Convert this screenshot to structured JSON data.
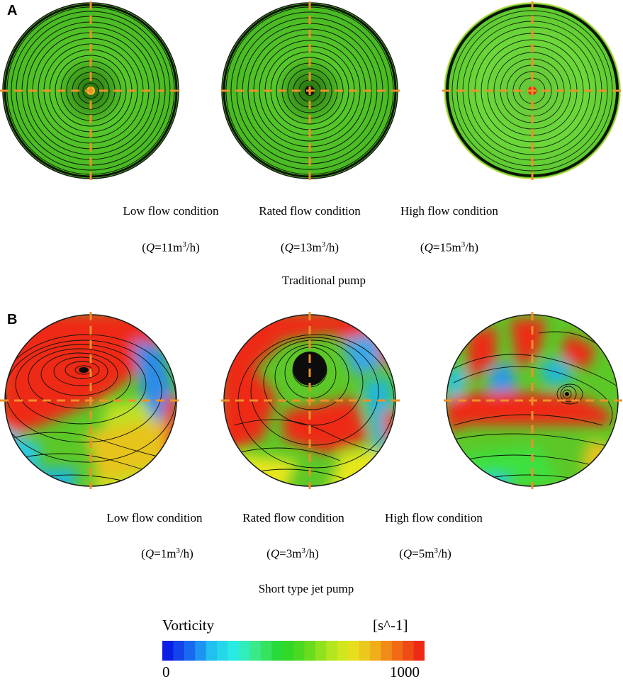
{
  "panels": [
    {
      "letter": "A",
      "title": "Traditional pump",
      "conditions": [
        {
          "label": "Low flow condition",
          "q_prefix": "(",
          "q_var": "Q",
          "q_value": "=11m",
          "q_exp": "3",
          "q_suffix": "/h)"
        },
        {
          "label": "Rated flow condition",
          "q_prefix": "(",
          "q_var": "Q",
          "q_value": "=13m",
          "q_exp": "3",
          "q_suffix": "/h)"
        },
        {
          "label": "High flow condition",
          "q_prefix": "(",
          "q_var": "Q",
          "q_value": "=15m",
          "q_exp": "3",
          "q_suffix": "/h)"
        }
      ]
    },
    {
      "letter": "B",
      "title": "Short type jet pump",
      "conditions": [
        {
          "label": "Low flow condition",
          "q_prefix": "(",
          "q_var": "Q",
          "q_value": "=1m",
          "q_exp": "3",
          "q_suffix": "/h)"
        },
        {
          "label": "Rated flow condition",
          "q_prefix": "(",
          "q_var": "Q",
          "q_value": "=3m",
          "q_exp": "3",
          "q_suffix": "/h)"
        },
        {
          "label": "High flow condition",
          "q_prefix": "(",
          "q_var": "Q",
          "q_value": "=5m",
          "q_exp": "3",
          "q_suffix": "/h)"
        }
      ]
    }
  ],
  "colorbar": {
    "title": "Vorticity",
    "unit": "[s^-1]",
    "min": "0",
    "max": "1000",
    "colors": [
      "#0a1ee6",
      "#1a6cf0",
      "#22c8f0",
      "#28f0e0",
      "#3ee878",
      "#22d82a",
      "#5ad81e",
      "#a8e61e",
      "#e6e61e",
      "#f0b41a",
      "#f06e14",
      "#ee2a14"
    ]
  }
}
